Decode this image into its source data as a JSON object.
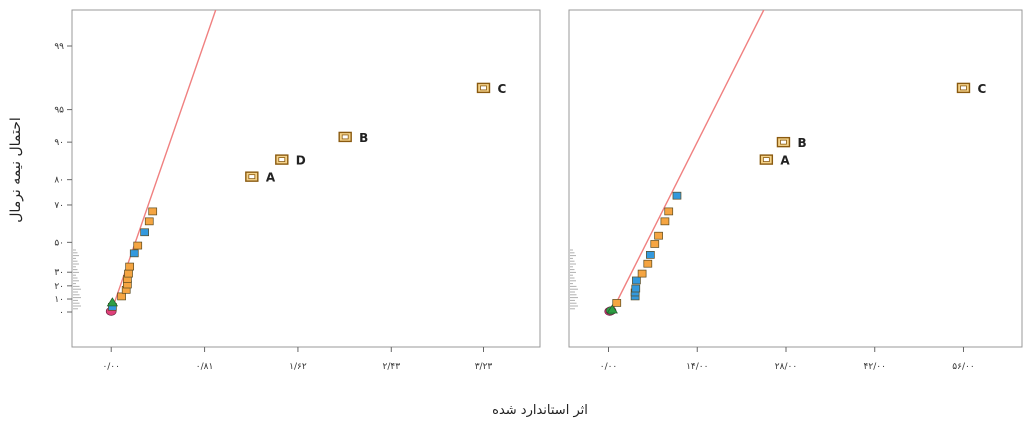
{
  "ylabel": "احتمال نیمه نرمال",
  "xlabel": "اثر استاندارد شده",
  "colors": {
    "fit_line": "#f08080",
    "orange": "#f5a542",
    "blue": "#3399dd",
    "green": "#2e9e44",
    "red": "#e0407a",
    "effect_border": "#8a5a10",
    "effect_fill": "#f5d38a"
  },
  "chart_data": [
    {
      "type": "scatter",
      "xlim": [
        -0.08,
        3.46
      ],
      "y_ticks": [
        {
          "label": "۰",
          "value": 0
        },
        {
          "label": "۱۰",
          "value": 10
        },
        {
          "label": "۲۰",
          "value": 20
        },
        {
          "label": "۳۰",
          "value": 30
        },
        {
          "label": "۵۰",
          "value": 50
        },
        {
          "label": "۷۰",
          "value": 70
        },
        {
          "label": "۸۰",
          "value": 80
        },
        {
          "label": "۹۰",
          "value": 90
        },
        {
          "label": "۹۵",
          "value": 95
        },
        {
          "label": "۹۹",
          "value": 99
        }
      ],
      "x_ticks": [
        {
          "label": "۰/۰۰",
          "value": 0
        },
        {
          "label": "۰/۸۱",
          "value": 0.81
        },
        {
          "label": "۱/۶۲",
          "value": 1.62
        },
        {
          "label": "۲/۴۳",
          "value": 2.43
        },
        {
          "label": "۳/۲۳",
          "value": 3.23
        }
      ],
      "fit_line": [
        [
          0,
          0
        ],
        [
          1.02,
          110
        ]
      ],
      "points": [
        {
          "x": 0.0,
          "y": 0.5,
          "shape": "circle",
          "color": "red"
        },
        {
          "x": 0.01,
          "y": 4,
          "shape": "square",
          "color": "blue"
        },
        {
          "x": 0.01,
          "y": 7,
          "shape": "triangle",
          "color": "green"
        },
        {
          "x": 0.09,
          "y": 12,
          "shape": "square",
          "color": "orange"
        },
        {
          "x": 0.13,
          "y": 17,
          "shape": "square",
          "color": "orange"
        },
        {
          "x": 0.14,
          "y": 21,
          "shape": "square",
          "color": "orange"
        },
        {
          "x": 0.14,
          "y": 25,
          "shape": "square",
          "color": "orange"
        },
        {
          "x": 0.15,
          "y": 29,
          "shape": "square",
          "color": "orange"
        },
        {
          "x": 0.16,
          "y": 34,
          "shape": "square",
          "color": "orange"
        },
        {
          "x": 0.2,
          "y": 43,
          "shape": "square",
          "color": "blue"
        },
        {
          "x": 0.23,
          "y": 48,
          "shape": "square",
          "color": "orange"
        },
        {
          "x": 0.29,
          "y": 56,
          "shape": "square",
          "color": "blue"
        },
        {
          "x": 0.33,
          "y": 62,
          "shape": "square",
          "color": "orange"
        },
        {
          "x": 0.36,
          "y": 67,
          "shape": "square",
          "color": "orange"
        },
        {
          "x": 1.22,
          "y": 81,
          "label": "A",
          "shape": "effect"
        },
        {
          "x": 1.48,
          "y": 86,
          "label": "D",
          "shape": "effect"
        },
        {
          "x": 2.03,
          "y": 91,
          "label": "B",
          "shape": "effect"
        },
        {
          "x": 3.23,
          "y": 97,
          "label": "C",
          "shape": "effect"
        }
      ]
    },
    {
      "type": "scatter",
      "xlim": [
        -1.5,
        60.5
      ],
      "y_ticks": [],
      "x_ticks": [
        {
          "label": "۰/۰۰",
          "value": 0
        },
        {
          "label": "۱۴/۰۰",
          "value": 14
        },
        {
          "label": "۲۸/۰۰",
          "value": 28
        },
        {
          "label": "۴۲/۰۰",
          "value": 42
        },
        {
          "label": "۵۶/۰۰",
          "value": 56
        }
      ],
      "fit_line": [
        [
          0.5,
          0
        ],
        [
          27.5,
          110
        ]
      ],
      "points": [
        {
          "x": 0.2,
          "y": 0.5,
          "shape": "circle",
          "color": "red"
        },
        {
          "x": 0.4,
          "y": 1,
          "shape": "circle",
          "color": "green"
        },
        {
          "x": 0.6,
          "y": 1.5,
          "shape": "triangle",
          "color": "green"
        },
        {
          "x": 1.3,
          "y": 7,
          "shape": "square",
          "color": "orange"
        },
        {
          "x": 4.2,
          "y": 12,
          "shape": "square",
          "color": "blue"
        },
        {
          "x": 4.2,
          "y": 15,
          "shape": "square",
          "color": "blue"
        },
        {
          "x": 4.3,
          "y": 18,
          "shape": "square",
          "color": "blue"
        },
        {
          "x": 4.4,
          "y": 24,
          "shape": "square",
          "color": "blue"
        },
        {
          "x": 5.3,
          "y": 29,
          "shape": "square",
          "color": "orange"
        },
        {
          "x": 6.2,
          "y": 36,
          "shape": "square",
          "color": "orange"
        },
        {
          "x": 6.6,
          "y": 42,
          "shape": "square",
          "color": "blue"
        },
        {
          "x": 7.3,
          "y": 49,
          "shape": "square",
          "color": "orange"
        },
        {
          "x": 7.9,
          "y": 54,
          "shape": "square",
          "color": "orange"
        },
        {
          "x": 8.9,
          "y": 62,
          "shape": "square",
          "color": "orange"
        },
        {
          "x": 9.5,
          "y": 67,
          "shape": "square",
          "color": "orange"
        },
        {
          "x": 10.8,
          "y": 74,
          "shape": "square",
          "color": "blue"
        },
        {
          "x": 24.9,
          "y": 86,
          "label": "A",
          "shape": "effect"
        },
        {
          "x": 27.6,
          "y": 90,
          "label": "B",
          "shape": "effect"
        },
        {
          "x": 56.0,
          "y": 97,
          "label": "C",
          "shape": "effect"
        }
      ]
    }
  ]
}
